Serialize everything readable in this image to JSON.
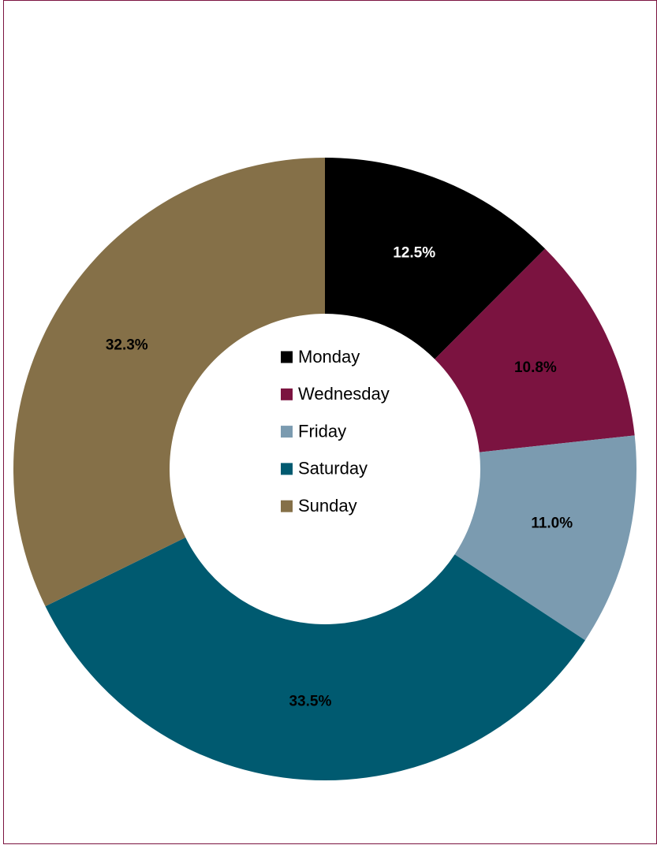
{
  "chart_data": {
    "type": "donut",
    "categories": [
      "Monday",
      "Wednesday",
      "Friday",
      "Saturday",
      "Sunday"
    ],
    "values": [
      12.5,
      10.8,
      11.0,
      33.5,
      32.3
    ],
    "value_labels": [
      "12.5%",
      "10.8%",
      "11.0%",
      "33.5%",
      "32.3%"
    ],
    "colors": [
      "#000000",
      "#7b1340",
      "#7b9bb0",
      "#005a70",
      "#857048"
    ],
    "legend": "center"
  }
}
